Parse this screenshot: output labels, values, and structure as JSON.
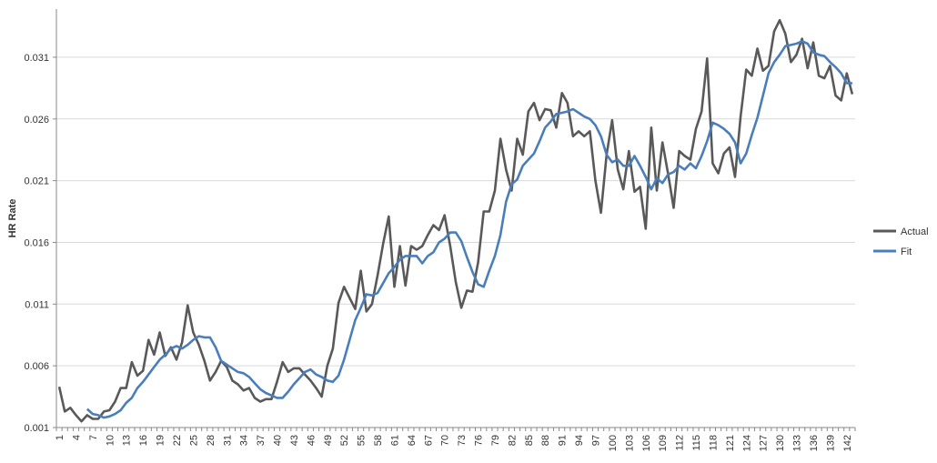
{
  "chart_data": {
    "type": "line",
    "title": "",
    "xlabel": "",
    "ylabel": "HR Rate",
    "x_start": 1,
    "x_end": 143,
    "x_tick_step": 3,
    "ylim": [
      0.001,
      0.0349
    ],
    "y_ticks": [
      0.001,
      0.006,
      0.011,
      0.016,
      0.021,
      0.026,
      0.031
    ],
    "grid": "horizontal",
    "legend_position": "right",
    "series": [
      {
        "name": "Actual",
        "color": "#595959",
        "values": [
          0.0043,
          0.0023,
          0.0026,
          0.002,
          0.0015,
          0.002,
          0.0017,
          0.0017,
          0.0023,
          0.0024,
          0.0031,
          0.0042,
          0.0042,
          0.0063,
          0.0052,
          0.0056,
          0.0081,
          0.0069,
          0.0087,
          0.0068,
          0.0075,
          0.0065,
          0.0079,
          0.0109,
          0.0087,
          0.0077,
          0.0064,
          0.0048,
          0.0055,
          0.0064,
          0.0059,
          0.0048,
          0.0045,
          0.004,
          0.0042,
          0.0034,
          0.0031,
          0.0033,
          0.0033,
          0.0047,
          0.0063,
          0.0055,
          0.0058,
          0.0058,
          0.0053,
          0.0048,
          0.0042,
          0.0035,
          0.006,
          0.0074,
          0.0111,
          0.0124,
          0.0115,
          0.0106,
          0.0137,
          0.0104,
          0.011,
          0.0133,
          0.0159,
          0.0181,
          0.0124,
          0.0157,
          0.0125,
          0.0157,
          0.0154,
          0.0157,
          0.0166,
          0.0174,
          0.017,
          0.0182,
          0.0157,
          0.0128,
          0.0107,
          0.0121,
          0.012,
          0.0144,
          0.0185,
          0.0185,
          0.0202,
          0.0244,
          0.0219,
          0.0202,
          0.0244,
          0.0231,
          0.0266,
          0.0273,
          0.0259,
          0.0268,
          0.0267,
          0.0253,
          0.0281,
          0.0273,
          0.0246,
          0.025,
          0.0246,
          0.025,
          0.021,
          0.0184,
          0.0231,
          0.0259,
          0.0219,
          0.0203,
          0.0234,
          0.0201,
          0.0205,
          0.0171,
          0.0253,
          0.0202,
          0.0241,
          0.0216,
          0.0188,
          0.0234,
          0.023,
          0.0227,
          0.0252,
          0.0266,
          0.0309,
          0.0224,
          0.0216,
          0.0232,
          0.0237,
          0.0213,
          0.0262,
          0.03,
          0.0295,
          0.0317,
          0.0299,
          0.0303,
          0.0331,
          0.034,
          0.0329,
          0.0306,
          0.0312,
          0.0325,
          0.0301,
          0.0322,
          0.0295,
          0.0293,
          0.0303,
          0.0279,
          0.0275,
          0.0297,
          0.028
        ]
      },
      {
        "name": "Fit",
        "color": "#4a7ebb",
        "values": [
          null,
          null,
          null,
          null,
          null,
          0.0025,
          0.0021,
          0.002,
          0.0018,
          0.0019,
          0.0021,
          0.0024,
          0.003,
          0.0034,
          0.0042,
          0.0047,
          0.0053,
          0.0059,
          0.0065,
          0.0069,
          0.0074,
          0.0076,
          0.0074,
          0.0077,
          0.0081,
          0.0084,
          0.0083,
          0.0083,
          0.0075,
          0.0064,
          0.0061,
          0.0058,
          0.0055,
          0.0054,
          0.0051,
          0.0046,
          0.0041,
          0.0038,
          0.0036,
          0.0034,
          0.0034,
          0.0039,
          0.0045,
          0.005,
          0.0055,
          0.0057,
          0.0053,
          0.0051,
          0.0048,
          0.0047,
          0.0052,
          0.0065,
          0.0081,
          0.0097,
          0.0107,
          0.0118,
          0.0117,
          0.0119,
          0.0127,
          0.0135,
          0.014,
          0.0146,
          0.0149,
          0.0149,
          0.0149,
          0.0143,
          0.0149,
          0.0152,
          0.016,
          0.0163,
          0.0168,
          0.0168,
          0.0161,
          0.0148,
          0.0136,
          0.0126,
          0.0124,
          0.0137,
          0.0149,
          0.0166,
          0.0193,
          0.0207,
          0.0211,
          0.0222,
          0.0227,
          0.0232,
          0.0242,
          0.0253,
          0.0258,
          0.0264,
          0.0265,
          0.0266,
          0.0268,
          0.0265,
          0.0262,
          0.026,
          0.0255,
          0.0246,
          0.0231,
          0.0225,
          0.0227,
          0.0222,
          0.0222,
          0.023,
          0.0222,
          0.0213,
          0.0203,
          0.0212,
          0.0208,
          0.0215,
          0.0217,
          0.0222,
          0.0219,
          0.0224,
          0.022,
          0.023,
          0.0242,
          0.0257,
          0.0255,
          0.0252,
          0.0248,
          0.0241,
          0.0224,
          0.0232,
          0.0247,
          0.0261,
          0.0279,
          0.0297,
          0.0306,
          0.0312,
          0.0319,
          0.032,
          0.0321,
          0.0323,
          0.0321,
          0.0314,
          0.0312,
          0.0311,
          0.0306,
          0.0302,
          0.0297,
          0.0289,
          0.0289
        ]
      }
    ]
  }
}
